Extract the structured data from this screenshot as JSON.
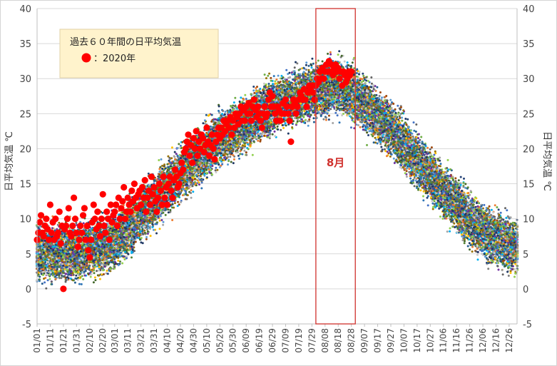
{
  "chart_data": {
    "type": "scatter",
    "ylabel_left": "日平均気温 ℃",
    "ylabel_right": "日平均気温 ℃",
    "ylim": [
      -5,
      40
    ],
    "yticks": [
      -5,
      0,
      5,
      10,
      15,
      20,
      25,
      30,
      35,
      40
    ],
    "x_tick_labels": [
      "01/01",
      "01/11",
      "01/21",
      "01/31",
      "02/10",
      "02/20",
      "03/01",
      "03/11",
      "03/21",
      "03/31",
      "04/10",
      "04/20",
      "04/30",
      "05/10",
      "05/20",
      "05/30",
      "06/09",
      "06/19",
      "06/29",
      "07/09",
      "07/19",
      "07/29",
      "08/08",
      "08/18",
      "08/28",
      "09/07",
      "09/17",
      "09/27",
      "10/07",
      "10/17",
      "10/27",
      "11/06",
      "11/16",
      "11/26",
      "12/06",
      "12/16",
      "12/26"
    ],
    "x_tick_day_of_year": [
      1,
      11,
      21,
      31,
      41,
      51,
      60,
      70,
      80,
      90,
      100,
      110,
      120,
      130,
      140,
      150,
      160,
      170,
      180,
      190,
      200,
      210,
      220,
      230,
      240,
      250,
      260,
      270,
      280,
      290,
      300,
      310,
      320,
      330,
      340,
      350,
      360
    ],
    "grid": true,
    "legend": {
      "title": "過去６０年間の日平均気温",
      "entries": [
        {
          "marker": "red-circle",
          "label": "：2020年"
        }
      ],
      "placement": "top-left"
    },
    "highlight": {
      "label": "8月",
      "x_start_day": 213,
      "x_end_day": 243
    },
    "series": [
      {
        "name": "過去６０年間の日平均気温",
        "years": 60,
        "colors": [
          "#2e75b6",
          "#70ad47",
          "#ffc000",
          "#a5a5a5",
          "#5b9bd5",
          "#264478",
          "#9e480e",
          "#43682b",
          "#7f7f7f",
          "#4472c4",
          "#ed7d31",
          "#00b0f0",
          "#92d050",
          "#7030a0",
          "#997300",
          "#636363",
          "#c9c9c9",
          "#255e91",
          "#1f3864",
          "#548235"
        ],
        "mean_profile": {
          "day": [
            1,
            20,
            35,
            50,
            65,
            80,
            95,
            110,
            125,
            140,
            155,
            170,
            185,
            200,
            215,
            228,
            240,
            255,
            270,
            285,
            300,
            315,
            330,
            345,
            365
          ],
          "temp": [
            5.5,
            5.0,
            5.3,
            6.0,
            7.5,
            10.5,
            13.5,
            16.5,
            19.0,
            21.5,
            23.0,
            25.0,
            26.5,
            27.5,
            28.5,
            29.0,
            28.0,
            25.5,
            23.0,
            19.5,
            16.0,
            13.0,
            10.0,
            7.5,
            6.0
          ]
        },
        "spread": 3.2
      },
      {
        "name": "2020年",
        "color": "#ff0000",
        "points": [
          [
            1,
            7
          ],
          [
            2,
            8
          ],
          [
            3,
            9.5
          ],
          [
            4,
            10.5
          ],
          [
            5,
            8
          ],
          [
            6,
            7.5
          ],
          [
            7,
            9
          ],
          [
            8,
            10
          ],
          [
            9,
            8.5
          ],
          [
            10,
            7
          ],
          [
            11,
            12
          ],
          [
            12,
            8
          ],
          [
            13,
            9.5
          ],
          [
            14,
            7
          ],
          [
            15,
            10
          ],
          [
            16,
            7.5
          ],
          [
            17,
            8
          ],
          [
            18,
            11
          ],
          [
            19,
            6.5
          ],
          [
            20,
            9
          ],
          [
            21,
            0
          ],
          [
            22,
            8.5
          ],
          [
            23,
            9
          ],
          [
            24,
            10
          ],
          [
            25,
            11.5
          ],
          [
            26,
            8
          ],
          [
            27,
            7.5
          ],
          [
            28,
            9
          ],
          [
            29,
            13
          ],
          [
            30,
            10
          ],
          [
            31,
            8
          ],
          [
            32,
            6
          ],
          [
            33,
            7
          ],
          [
            34,
            9
          ],
          [
            35,
            8
          ],
          [
            36,
            10.5
          ],
          [
            37,
            11.5
          ],
          [
            38,
            7
          ],
          [
            39,
            9
          ],
          [
            40,
            5.5
          ],
          [
            41,
            4.5
          ],
          [
            42,
            7
          ],
          [
            43,
            9.5
          ],
          [
            44,
            12
          ],
          [
            45,
            10
          ],
          [
            46,
            8.5
          ],
          [
            47,
            11
          ],
          [
            48,
            9
          ],
          [
            49,
            7.5
          ],
          [
            50,
            10
          ],
          [
            51,
            13.5
          ],
          [
            52,
            9
          ],
          [
            53,
            8
          ],
          [
            54,
            11
          ],
          [
            55,
            10
          ],
          [
            56,
            7
          ],
          [
            57,
            12
          ],
          [
            58,
            9.5
          ],
          [
            59,
            10.5
          ],
          [
            60,
            11
          ],
          [
            61,
            12
          ],
          [
            62,
            9
          ],
          [
            63,
            13
          ],
          [
            64,
            10
          ],
          [
            65,
            11.5
          ],
          [
            66,
            12.5
          ],
          [
            67,
            14.5
          ],
          [
            68,
            10
          ],
          [
            69,
            11
          ],
          [
            70,
            13
          ],
          [
            71,
            12
          ],
          [
            72,
            11
          ],
          [
            73,
            14
          ],
          [
            74,
            12.5
          ],
          [
            75,
            15
          ],
          [
            76,
            13
          ],
          [
            77,
            11.5
          ],
          [
            78,
            13.5
          ],
          [
            79,
            14
          ],
          [
            80,
            12
          ],
          [
            81,
            14.5
          ],
          [
            82,
            13
          ],
          [
            83,
            15.5
          ],
          [
            84,
            11
          ],
          [
            85,
            13
          ],
          [
            86,
            14
          ],
          [
            87,
            12
          ],
          [
            88,
            16
          ],
          [
            89,
            13.5
          ],
          [
            90,
            14.5
          ],
          [
            91,
            12.5
          ],
          [
            92,
            11
          ],
          [
            93,
            13
          ],
          [
            94,
            15
          ],
          [
            95,
            14
          ],
          [
            96,
            12
          ],
          [
            97,
            16
          ],
          [
            98,
            13
          ],
          [
            99,
            14.5
          ],
          [
            100,
            12
          ],
          [
            101,
            15
          ],
          [
            102,
            16
          ],
          [
            103,
            14
          ],
          [
            104,
            13
          ],
          [
            105,
            15.5
          ],
          [
            106,
            17
          ],
          [
            107,
            16
          ],
          [
            108,
            14.5
          ],
          [
            109,
            15
          ],
          [
            110,
            16.5
          ],
          [
            111,
            18
          ],
          [
            112,
            17
          ],
          [
            113,
            19.5
          ],
          [
            114,
            20
          ],
          [
            115,
            21
          ],
          [
            116,
            22
          ],
          [
            117,
            19
          ],
          [
            118,
            20.5
          ],
          [
            119,
            18
          ],
          [
            120,
            21.5
          ],
          [
            121,
            20
          ],
          [
            122,
            22.5
          ],
          [
            123,
            19
          ],
          [
            124,
            21
          ],
          [
            125,
            20
          ],
          [
            126,
            22
          ],
          [
            127,
            21.5
          ],
          [
            128,
            19.5
          ],
          [
            129,
            20.5
          ],
          [
            130,
            23
          ],
          [
            131,
            21
          ],
          [
            132,
            19
          ],
          [
            133,
            20.5
          ],
          [
            134,
            22
          ],
          [
            135,
            20
          ],
          [
            136,
            18.5
          ],
          [
            137,
            21
          ],
          [
            138,
            22
          ],
          [
            139,
            23
          ],
          [
            140,
            21.5
          ],
          [
            141,
            23
          ],
          [
            142,
            22
          ],
          [
            143,
            24
          ],
          [
            144,
            22.5
          ],
          [
            145,
            23.5
          ],
          [
            146,
            24
          ],
          [
            147,
            23
          ],
          [
            148,
            24.5
          ],
          [
            149,
            22
          ],
          [
            150,
            24
          ],
          [
            151,
            23
          ],
          [
            152,
            25
          ],
          [
            153,
            24.5
          ],
          [
            154,
            23.5
          ],
          [
            155,
            25
          ],
          [
            156,
            26
          ],
          [
            157,
            24
          ],
          [
            158,
            25.5
          ],
          [
            159,
            24
          ],
          [
            160,
            26
          ],
          [
            161,
            25
          ],
          [
            162,
            26.5
          ],
          [
            163,
            25
          ],
          [
            164,
            24
          ],
          [
            165,
            26
          ],
          [
            166,
            27
          ],
          [
            167,
            25.5
          ],
          [
            168,
            24.5
          ],
          [
            169,
            26
          ],
          [
            170,
            25
          ],
          [
            171,
            24
          ],
          [
            172,
            23
          ],
          [
            173,
            25
          ],
          [
            174,
            26
          ],
          [
            175,
            24.5
          ],
          [
            176,
            25
          ],
          [
            177,
            27
          ],
          [
            178,
            28
          ],
          [
            179,
            26
          ],
          [
            180,
            27.5
          ],
          [
            181,
            26
          ],
          [
            182,
            25
          ],
          [
            183,
            24
          ],
          [
            184,
            26
          ],
          [
            185,
            25.5
          ],
          [
            186,
            24
          ],
          [
            187,
            25
          ],
          [
            188,
            26.5
          ],
          [
            189,
            25
          ],
          [
            190,
            27
          ],
          [
            191,
            26
          ],
          [
            192,
            25
          ],
          [
            193,
            24
          ],
          [
            194,
            21
          ],
          [
            195,
            26
          ],
          [
            196,
            27
          ],
          [
            197,
            26.5
          ],
          [
            198,
            25
          ],
          [
            199,
            26
          ],
          [
            200,
            27
          ],
          [
            201,
            28
          ],
          [
            202,
            27.5
          ],
          [
            203,
            27
          ],
          [
            204,
            28.5
          ],
          [
            205,
            27
          ],
          [
            206,
            26
          ],
          [
            207,
            28
          ],
          [
            208,
            29
          ],
          [
            209,
            28.5
          ],
          [
            210,
            29
          ],
          [
            211,
            28
          ],
          [
            212,
            27
          ],
          [
            213,
            29
          ],
          [
            214,
            30
          ],
          [
            215,
            29.5
          ],
          [
            216,
            31
          ],
          [
            217,
            30
          ],
          [
            218,
            31.5
          ],
          [
            219,
            30
          ],
          [
            220,
            31
          ],
          [
            221,
            32
          ],
          [
            222,
            31
          ],
          [
            223,
            32.5
          ],
          [
            224,
            31
          ],
          [
            225,
            32
          ],
          [
            226,
            30.5
          ],
          [
            227,
            31.5
          ],
          [
            228,
            32
          ],
          [
            229,
            31
          ],
          [
            230,
            31.5
          ],
          [
            231,
            30
          ],
          [
            232,
            31
          ],
          [
            233,
            29
          ],
          [
            234,
            31
          ],
          [
            235,
            30.5
          ],
          [
            236,
            29.5
          ],
          [
            237,
            30
          ],
          [
            238,
            31
          ],
          [
            239,
            30.5
          ],
          [
            240,
            31
          ]
        ]
      }
    ]
  }
}
